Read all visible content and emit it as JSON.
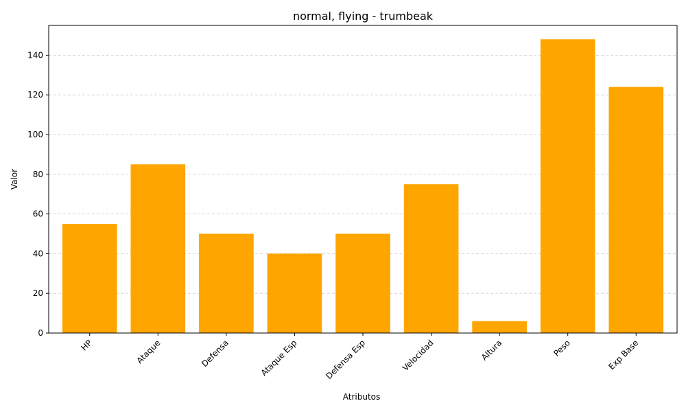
{
  "chart_data": {
    "type": "bar",
    "title": "normal, flying - trumbeak",
    "xlabel": "Atributos",
    "ylabel": "Valor",
    "categories": [
      "HP",
      "Ataque",
      "Defensa",
      "Ataque Esp",
      "Defensa Esp",
      "Velocidad",
      "Altura",
      "Peso",
      "Exp Base"
    ],
    "values": [
      55,
      85,
      50,
      40,
      50,
      75,
      6,
      148,
      124
    ],
    "ylim": [
      0,
      155
    ],
    "yticks": [
      0,
      20,
      40,
      60,
      80,
      100,
      120,
      140
    ],
    "bar_color": "#ffa500",
    "grid": "y-dashed",
    "x_tick_rotation": 45
  }
}
